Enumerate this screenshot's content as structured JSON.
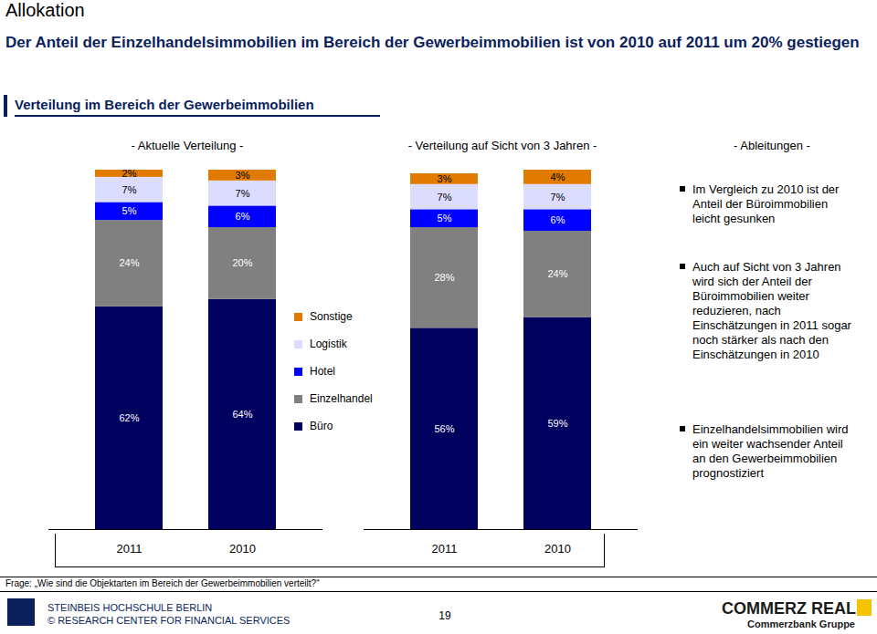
{
  "page": {
    "section": "Allokation",
    "headline": "Der Anteil der Einzelhandelsimmobilien im Bereich der Gewerbeimmobilien ist von 2010 auf 2011 um 20% gestiegen",
    "subtitle": "Verteilung im Bereich der Gewerbeimmobilien",
    "notes_title": "- Ableitungen -",
    "notes": [
      "Im Vergleich zu 2010 ist der Anteil der Büroimmobilien leicht gesunken",
      "Auch auf Sicht von 3 Jahren wird sich der Anteil der Büroimmobilien weiter reduzieren, nach Einschätzungen in 2011 sogar noch stärker als nach den Einschätzungen in 2010",
      "Einzelhandelsimmobilien wird ein weiter wachsender Anteil an den Gewerbeimmobilien prognostiziert"
    ],
    "question": "Frage: „Wie sind die Objektarten im Bereich der Gewerbeimmobilien verteilt?“",
    "footer": {
      "left": [
        "STEINBEIS HOCHSCHULE BERLIN",
        "© RESEARCH CENTER FOR FINANCIAL SERVICES"
      ],
      "page_number": "19",
      "brand": "COMMERZ REAL",
      "brand_sub": "Commerzbank Gruppe"
    }
  },
  "chart_data": [
    {
      "type": "bar",
      "title": "- Aktuelle Verteilung -",
      "stacked": true,
      "data_labels": true,
      "tick_labels": "x",
      "legend": "right",
      "ylim": [
        0,
        100
      ],
      "categories": [
        "2011",
        "2010"
      ],
      "series": [
        {
          "name": "Büro",
          "color": "#00005e",
          "values": [
            62,
            64
          ],
          "value_labels": [
            "62%",
            "64%"
          ]
        },
        {
          "name": "Einzelhandel",
          "color": "#808080",
          "values": [
            24,
            20
          ],
          "value_labels": [
            "24%",
            "20%"
          ]
        },
        {
          "name": "Hotel",
          "color": "#0000ff",
          "values": [
            5,
            6
          ],
          "value_labels": [
            "5%",
            "6%"
          ]
        },
        {
          "name": "Logistik",
          "color": "#dcdcff",
          "values": [
            7,
            7
          ],
          "value_labels": [
            "7%",
            "7%"
          ]
        },
        {
          "name": "Sonstige",
          "color": "#e07b00",
          "values": [
            2,
            3
          ],
          "value_labels": [
            "2%",
            "3%"
          ]
        }
      ]
    },
    {
      "type": "bar",
      "title": "- Verteilung auf Sicht von 3 Jahren -",
      "stacked": true,
      "data_labels": true,
      "tick_labels": "x",
      "ylim": [
        0,
        100
      ],
      "categories": [
        "2011",
        "2010"
      ],
      "series": [
        {
          "name": "Büro",
          "color": "#00005e",
          "values": [
            56,
            59
          ],
          "value_labels": [
            "56%",
            "59%"
          ]
        },
        {
          "name": "Einzelhandel",
          "color": "#808080",
          "values": [
            28,
            24
          ],
          "value_labels": [
            "28%",
            "24%"
          ]
        },
        {
          "name": "Hotel",
          "color": "#0000ff",
          "values": [
            5,
            6
          ],
          "value_labels": [
            "5%",
            "6%"
          ]
        },
        {
          "name": "Logistik",
          "color": "#dcdcff",
          "values": [
            7,
            7
          ],
          "value_labels": [
            "7%",
            "7%"
          ]
        },
        {
          "name": "Sonstige",
          "color": "#e07b00",
          "values": [
            3,
            4
          ],
          "value_labels": [
            "3%",
            "4%"
          ]
        }
      ]
    }
  ]
}
